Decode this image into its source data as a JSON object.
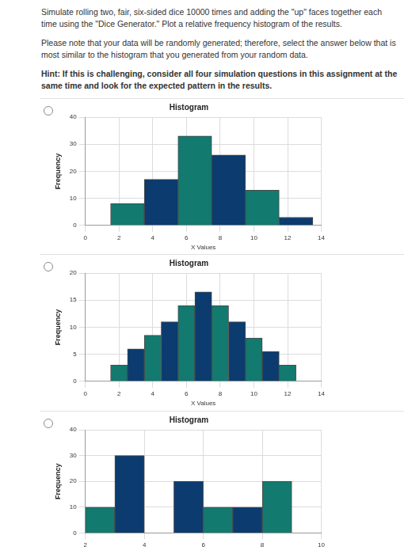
{
  "page": {
    "question": "Simulate rolling two, fair, six-sided dice 10000 times and adding the \"up\" faces together each time using the \"Dice Generator.\" Plot a relative frequency histogram of the results.",
    "note": "Please note that your data will be randomly generated; therefore, select the answer below that is most similar to the histogram that you generated from your random data.",
    "hint": "Hint: If this is challenging, consider all four simulation questions in this assignment at the same time and look for the expected pattern in the results."
  },
  "chart_data": [
    {
      "type": "histogram",
      "title": "Histogram",
      "x_label": "X Values",
      "y_label": "Frequency",
      "bins": [
        1.5,
        3.5,
        5.5,
        7.5,
        9.5,
        11.5,
        13.5
      ],
      "values": [
        8,
        17,
        33,
        26,
        13,
        3
      ],
      "colors": [
        "#127a6e",
        "#0b3b6f",
        "#127a6e",
        "#0b3b6f",
        "#127a6e",
        "#0b3b6f"
      ],
      "xlim": [
        0,
        14
      ],
      "xticks": [
        0,
        2,
        4,
        6,
        8,
        10,
        12,
        14
      ],
      "ylim": [
        0,
        40
      ],
      "yticks": [
        0,
        10,
        20,
        30,
        40
      ],
      "grid": true
    },
    {
      "type": "histogram",
      "title": "Histogram",
      "x_label": "X Values",
      "y_label": "Frequency",
      "bins": [
        1.5,
        2.5,
        3.5,
        4.5,
        5.5,
        6.5,
        7.5,
        8.5,
        9.5,
        10.5,
        11.5,
        12.5
      ],
      "values": [
        3,
        6,
        8.5,
        11,
        14,
        16.5,
        14,
        11,
        8,
        5.5,
        3
      ],
      "colors": [
        "#127a6e",
        "#0b3b6f",
        "#127a6e",
        "#0b3b6f",
        "#127a6e",
        "#0b3b6f",
        "#127a6e",
        "#0b3b6f",
        "#127a6e",
        "#0b3b6f",
        "#127a6e"
      ],
      "xlim": [
        0,
        14
      ],
      "xticks": [
        0,
        2,
        4,
        6,
        8,
        10,
        12,
        14
      ],
      "ylim": [
        0,
        20
      ],
      "yticks": [
        0,
        5,
        10,
        15,
        20
      ],
      "grid": true
    },
    {
      "type": "histogram",
      "title": "Histogram",
      "y_label": "Frequency",
      "bins": [
        2,
        3,
        4,
        5,
        6,
        7,
        8,
        9
      ],
      "values": [
        10,
        30,
        0,
        20,
        10,
        10,
        20
      ],
      "colors": [
        "#127a6e",
        "#0b3b6f",
        "#127a6e",
        "#0b3b6f",
        "#127a6e",
        "#0b3b6f",
        "#127a6e"
      ],
      "xlim": [
        2,
        10
      ],
      "xticks": [
        2,
        4,
        6,
        8,
        10
      ],
      "ylim": [
        0,
        40
      ],
      "yticks": [
        0,
        10,
        20,
        30,
        40
      ],
      "grid": true
    }
  ]
}
